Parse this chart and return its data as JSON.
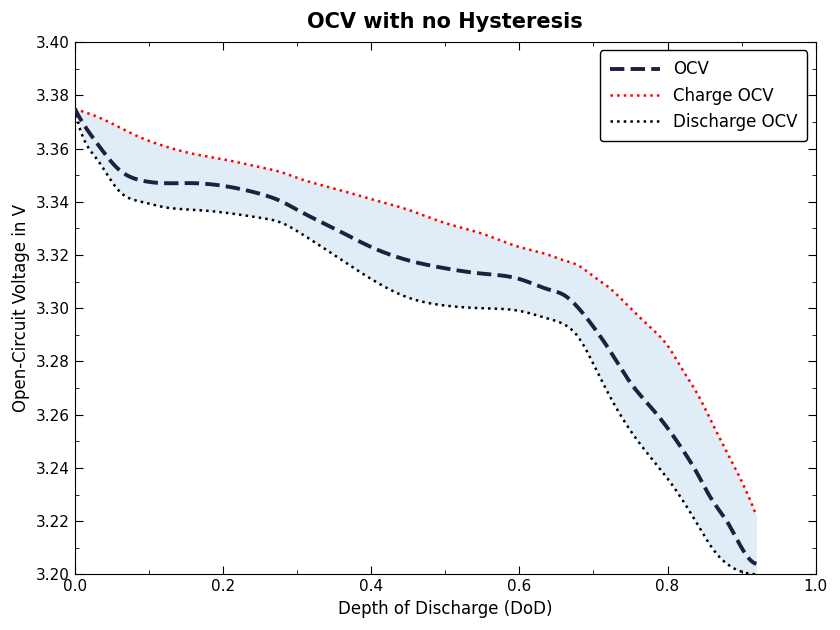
{
  "title": "OCV with no Hysteresis",
  "xlabel": "Depth of Discharge (DoD)",
  "ylabel": "Open-Circuit Voltage in V",
  "xlim": [
    0,
    1
  ],
  "ylim": [
    3.2,
    3.4
  ],
  "fill_color": "#c8ddf0",
  "fill_alpha": 0.55,
  "ocv_color": "#1f2040",
  "charge_color": "#ff0000",
  "discharge_color": "#000000",
  "ocv_x": [
    0.0,
    0.01,
    0.03,
    0.06,
    0.09,
    0.12,
    0.16,
    0.2,
    0.25,
    0.28,
    0.3,
    0.35,
    0.4,
    0.45,
    0.5,
    0.55,
    0.6,
    0.64,
    0.66,
    0.68,
    0.7,
    0.72,
    0.75,
    0.78,
    0.8,
    0.82,
    0.84,
    0.86,
    0.88,
    0.9,
    0.92
  ],
  "ocv_y": [
    3.375,
    3.37,
    3.362,
    3.352,
    3.348,
    3.347,
    3.347,
    3.346,
    3.343,
    3.34,
    3.337,
    3.33,
    3.323,
    3.318,
    3.315,
    3.313,
    3.311,
    3.307,
    3.305,
    3.3,
    3.293,
    3.285,
    3.272,
    3.262,
    3.255,
    3.247,
    3.238,
    3.228,
    3.22,
    3.21,
    3.204
  ],
  "charge_x": [
    0.0,
    0.01,
    0.03,
    0.06,
    0.09,
    0.12,
    0.16,
    0.2,
    0.25,
    0.28,
    0.3,
    0.35,
    0.4,
    0.45,
    0.5,
    0.55,
    0.6,
    0.64,
    0.66,
    0.68,
    0.7,
    0.72,
    0.75,
    0.78,
    0.8,
    0.82,
    0.84,
    0.86,
    0.88,
    0.9,
    0.92
  ],
  "charge_y": [
    3.375,
    3.374,
    3.372,
    3.368,
    3.364,
    3.361,
    3.358,
    3.356,
    3.353,
    3.351,
    3.349,
    3.345,
    3.341,
    3.337,
    3.332,
    3.328,
    3.323,
    3.32,
    3.318,
    3.316,
    3.312,
    3.308,
    3.3,
    3.292,
    3.286,
    3.277,
    3.268,
    3.257,
    3.246,
    3.235,
    3.222
  ],
  "discharge_x": [
    0.0,
    0.01,
    0.03,
    0.06,
    0.09,
    0.12,
    0.16,
    0.2,
    0.25,
    0.28,
    0.3,
    0.35,
    0.4,
    0.45,
    0.5,
    0.55,
    0.6,
    0.64,
    0.66,
    0.68,
    0.7,
    0.72,
    0.75,
    0.78,
    0.8,
    0.82,
    0.84,
    0.86,
    0.88,
    0.9,
    0.92
  ],
  "discharge_y": [
    3.375,
    3.365,
    3.356,
    3.344,
    3.34,
    3.338,
    3.337,
    3.336,
    3.334,
    3.332,
    3.329,
    3.32,
    3.311,
    3.304,
    3.301,
    3.3,
    3.299,
    3.296,
    3.294,
    3.289,
    3.279,
    3.268,
    3.254,
    3.243,
    3.236,
    3.228,
    3.219,
    3.21,
    3.204,
    3.201,
    3.2
  ],
  "legend_labels": [
    "OCV",
    "Charge OCV",
    "Discharge OCV"
  ],
  "title_fontsize": 15,
  "label_fontsize": 12,
  "tick_fontsize": 11,
  "legend_fontsize": 12
}
